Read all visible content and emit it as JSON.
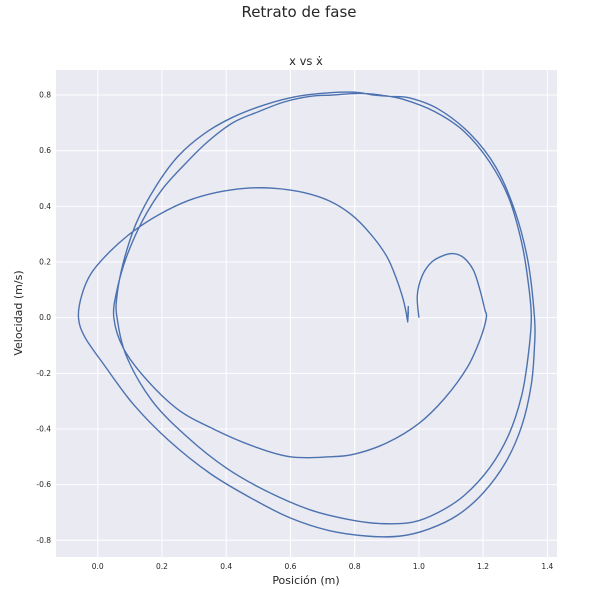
{
  "figure": {
    "suptitle": "Retrato de fase"
  },
  "chart_data": {
    "type": "line",
    "title": "x vs ẋ",
    "xlabel": "Posición (m)",
    "ylabel": "Velocidad (m/s)",
    "xlim": [
      -0.13,
      1.43
    ],
    "ylim": [
      -0.86,
      0.89
    ],
    "xticks": [
      "0.0",
      "0.2",
      "0.4",
      "0.6",
      "0.8",
      "1.0",
      "1.2",
      "1.4"
    ],
    "yticks": [
      "-0.8",
      "-0.6",
      "-0.4",
      "-0.2",
      "0.0",
      "0.2",
      "0.4",
      "0.6",
      "0.8"
    ],
    "grid": true,
    "line_color": "#4c72b0",
    "background": "#eaeaf2",
    "series": [
      {
        "x": [
          1.0,
          0.995,
          1.01,
          1.04,
          1.08,
          1.11,
          1.14,
          1.17,
          1.19,
          1.205,
          1.21,
          1.19,
          1.15,
          1.08,
          1.0,
          0.9,
          0.8,
          0.72,
          0.6,
          0.48,
          0.36,
          0.25,
          0.15,
          0.08,
          0.05,
          0.06,
          0.09,
          0.14,
          0.2,
          0.27,
          0.34,
          0.42,
          0.5,
          0.58,
          0.66,
          0.73,
          0.79,
          0.84,
          0.88,
          0.95,
          1.05,
          1.14,
          1.22,
          1.28,
          1.32,
          1.34,
          1.35,
          1.34,
          1.32,
          1.28,
          1.22,
          1.14,
          1.06,
          0.98,
          0.88,
          0.78,
          0.66,
          0.52,
          0.4,
          0.28,
          0.17,
          0.09,
          0.06,
          0.06,
          0.08,
          0.12,
          0.18,
          0.25,
          0.33,
          0.42,
          0.52,
          0.62,
          0.72,
          0.8,
          0.86,
          0.91,
          0.97,
          1.06,
          1.16,
          1.24,
          1.3,
          1.34,
          1.36,
          1.36,
          1.35,
          1.32,
          1.27,
          1.2,
          1.12,
          1.03,
          0.94,
          0.84,
          0.72,
          0.6,
          0.48,
          0.35,
          0.22,
          0.11,
          0.02,
          -0.04,
          -0.06,
          -0.05,
          -0.02,
          0.04,
          0.11,
          0.19,
          0.28,
          0.37,
          0.46,
          0.55,
          0.64,
          0.72,
          0.79,
          0.85,
          0.9,
          0.93,
          0.95,
          0.96,
          0.965,
          0.967,
          0.965,
          0.967,
          0.965
        ],
        "y": [
          0.0,
          0.08,
          0.15,
          0.2,
          0.225,
          0.23,
          0.215,
          0.17,
          0.1,
          0.03,
          0.0,
          -0.08,
          -0.18,
          -0.29,
          -0.38,
          -0.45,
          -0.49,
          -0.5,
          -0.5,
          -0.46,
          -0.4,
          -0.33,
          -0.22,
          -0.11,
          0.0,
          0.1,
          0.22,
          0.35,
          0.46,
          0.55,
          0.63,
          0.7,
          0.74,
          0.775,
          0.795,
          0.8,
          0.805,
          0.805,
          0.8,
          0.785,
          0.74,
          0.67,
          0.56,
          0.43,
          0.27,
          0.13,
          0.0,
          -0.14,
          -0.28,
          -0.42,
          -0.54,
          -0.64,
          -0.7,
          -0.735,
          -0.74,
          -0.725,
          -0.69,
          -0.62,
          -0.54,
          -0.43,
          -0.3,
          -0.14,
          0.0,
          0.08,
          0.2,
          0.34,
          0.47,
          0.58,
          0.66,
          0.72,
          0.765,
          0.795,
          0.808,
          0.81,
          0.8,
          0.795,
          0.79,
          0.75,
          0.66,
          0.54,
          0.38,
          0.2,
          0.0,
          -0.1,
          -0.24,
          -0.39,
          -0.52,
          -0.63,
          -0.71,
          -0.76,
          -0.785,
          -0.785,
          -0.765,
          -0.72,
          -0.65,
          -0.56,
          -0.44,
          -0.31,
          -0.17,
          -0.07,
          0.0,
          0.08,
          0.16,
          0.24,
          0.31,
          0.37,
          0.42,
          0.45,
          0.465,
          0.465,
          0.45,
          0.42,
          0.37,
          0.3,
          0.22,
          0.14,
          0.07,
          0.02,
          -0.01,
          0.04,
          -0.015,
          0.02,
          -0.01
        ]
      }
    ]
  }
}
